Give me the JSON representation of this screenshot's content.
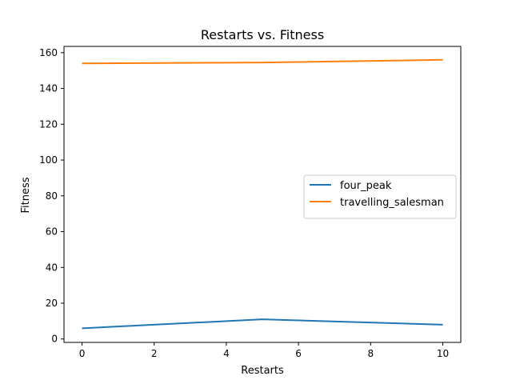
{
  "chart_data": {
    "type": "line",
    "title": "Restarts vs. Fitness",
    "xlabel": "Restarts",
    "ylabel": "Fitness",
    "xlim": [
      -0.5,
      10.5
    ],
    "ylim": [
      -1.9,
      163.5
    ],
    "xticks": [
      0,
      2,
      4,
      6,
      8,
      10
    ],
    "yticks": [
      0,
      20,
      40,
      60,
      80,
      100,
      120,
      140,
      160
    ],
    "grid": false,
    "legend_position": "center-right",
    "series": [
      {
        "name": "four_peak",
        "color": "#1f77b4",
        "x": [
          0,
          5,
          10
        ],
        "y": [
          6,
          11,
          8
        ]
      },
      {
        "name": "travelling_salesman",
        "color": "#ff7f0e",
        "x": [
          0,
          5,
          10
        ],
        "y": [
          154,
          154.5,
          156
        ]
      }
    ]
  }
}
